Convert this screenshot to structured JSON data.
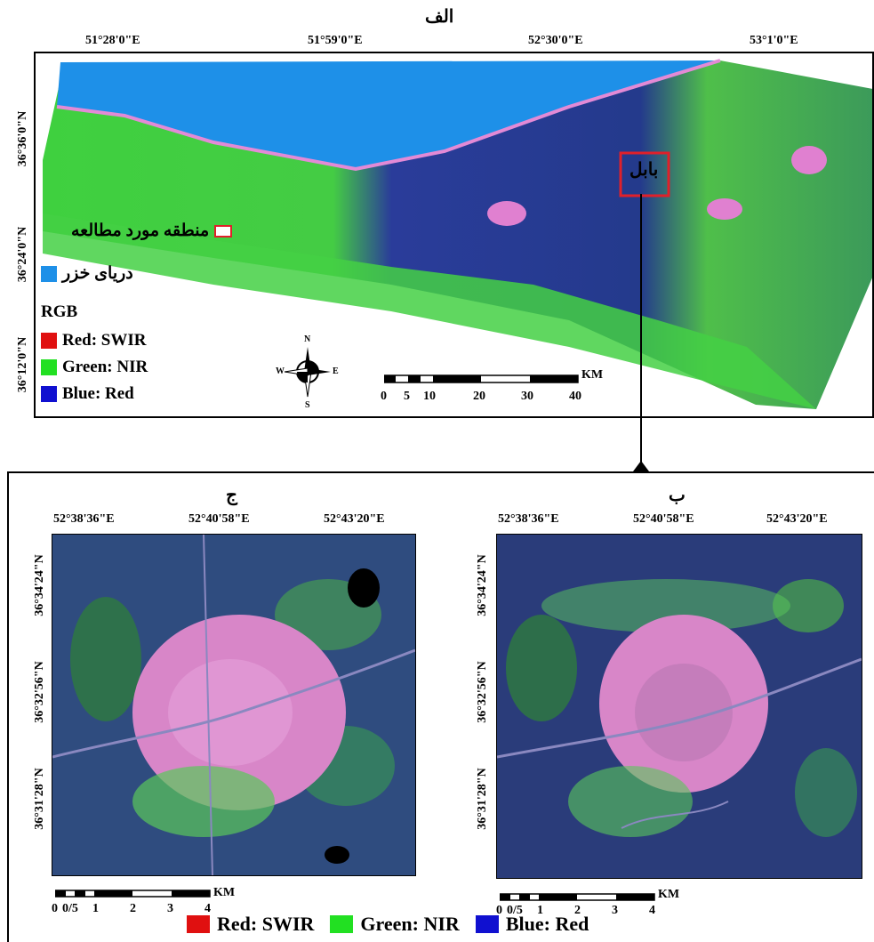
{
  "panel_a": {
    "title": "الف",
    "lon_labels": [
      "51°28'0\"E",
      "51°59'0\"E",
      "52°30'0\"E",
      "53°1'0\"E"
    ],
    "lat_labels": [
      "36°36'0\"N",
      "36°24'0\"N",
      "36°12'0\"N"
    ],
    "city_label": "بابل",
    "legend": {
      "study_area": "منطقه مورد مطالعه",
      "caspian": "دریای خزر",
      "rgb_title": "RGB",
      "red": "Red: SWIR",
      "green": "Green: NIR",
      "blue": "Blue: Red"
    },
    "north_arrow": {
      "n": "N",
      "s": "S",
      "e": "E",
      "w": "W"
    },
    "scale": {
      "unit": "KM",
      "ticks": [
        "0",
        "5",
        "10",
        "20",
        "30",
        "40"
      ]
    }
  },
  "panel_b": {
    "title": "ب",
    "lon_labels": [
      "52°38'36\"E",
      "52°40'58\"E",
      "52°43'20\"E"
    ],
    "lat_labels": [
      "36°34'24\"N",
      "36°32'56\"N",
      "36°31'28\"N"
    ],
    "scale": {
      "unit": "KM",
      "ticks": [
        "0",
        "0/5",
        "1",
        "2",
        "3",
        "4"
      ]
    }
  },
  "panel_c": {
    "title": "ج",
    "lon_labels": [
      "52°38'36\"E",
      "52°40'58\"E",
      "52°43'20\"E"
    ],
    "lat_labels": [
      "36°34'24\"N",
      "36°32'56\"N",
      "36°31'28\"N"
    ],
    "scale": {
      "unit": "KM",
      "ticks": [
        "0",
        "0/5",
        "1",
        "2",
        "3",
        "4"
      ]
    }
  },
  "bottom_legend": {
    "red": "Red: SWIR",
    "green": "Green: NIR",
    "blue": "Blue: Red"
  },
  "colors": {
    "swir_red": "#e01010",
    "nir_green": "#22e022",
    "red_blue": "#1010d0",
    "caspian_blue": "#1e90e8",
    "study_box": "#e0202a",
    "urban_pink": "#e080d0",
    "vegetation": "#3ccc3c",
    "dark_blue": "#1e2a6e"
  }
}
